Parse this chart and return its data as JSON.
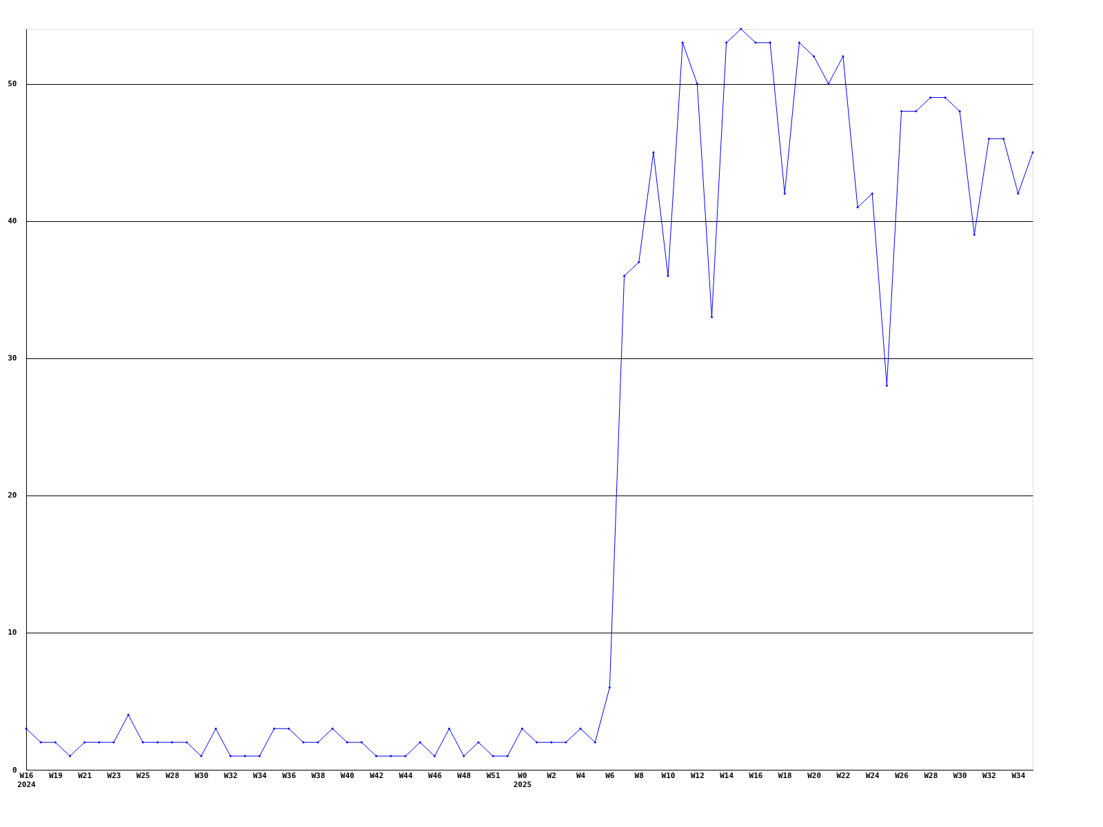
{
  "chart_data": {
    "type": "line",
    "categories": [
      "W16\n2024",
      null,
      "W19",
      null,
      "W21",
      null,
      "W23",
      null,
      "W25",
      null,
      "W28",
      null,
      "W30",
      null,
      "W32",
      null,
      "W34",
      null,
      "W36",
      null,
      "W38",
      null,
      "W40",
      null,
      "W42",
      null,
      "W44",
      null,
      "W46",
      null,
      "W48",
      null,
      "W51",
      null,
      "W0\n2025",
      null,
      "W2",
      null,
      "W4",
      null,
      "W6",
      null,
      "W8",
      null,
      "W10",
      null,
      "W12",
      null,
      "W14",
      null,
      "W16",
      null,
      "W18",
      null,
      "W20",
      null,
      "W22",
      null,
      "W24",
      null,
      "W26",
      null,
      "W28",
      null,
      "W30",
      null,
      "W32",
      null,
      "W34",
      null
    ],
    "series": [
      {
        "color": "#0000ff",
        "values": [
          3,
          2,
          2,
          1,
          2,
          2,
          2,
          4,
          2,
          2,
          2,
          2,
          1,
          3,
          1,
          1,
          1,
          3,
          3,
          2,
          2,
          3,
          2,
          2,
          1,
          1,
          1,
          2,
          1,
          3,
          1,
          2,
          1,
          1,
          3,
          2,
          2,
          2,
          3,
          2,
          6,
          36,
          37,
          45,
          36,
          53,
          50,
          33,
          53,
          54,
          53,
          53,
          42,
          53,
          52,
          50,
          52,
          41,
          42,
          28,
          48,
          48,
          49,
          49,
          48,
          39,
          46,
          46,
          42,
          45
        ]
      }
    ],
    "ylim": [
      0,
      54
    ],
    "yticks": [
      0,
      10,
      20,
      30,
      40,
      50
    ],
    "grid": "y",
    "marker": "diamond",
    "line_style": "solid",
    "legend": false
  }
}
